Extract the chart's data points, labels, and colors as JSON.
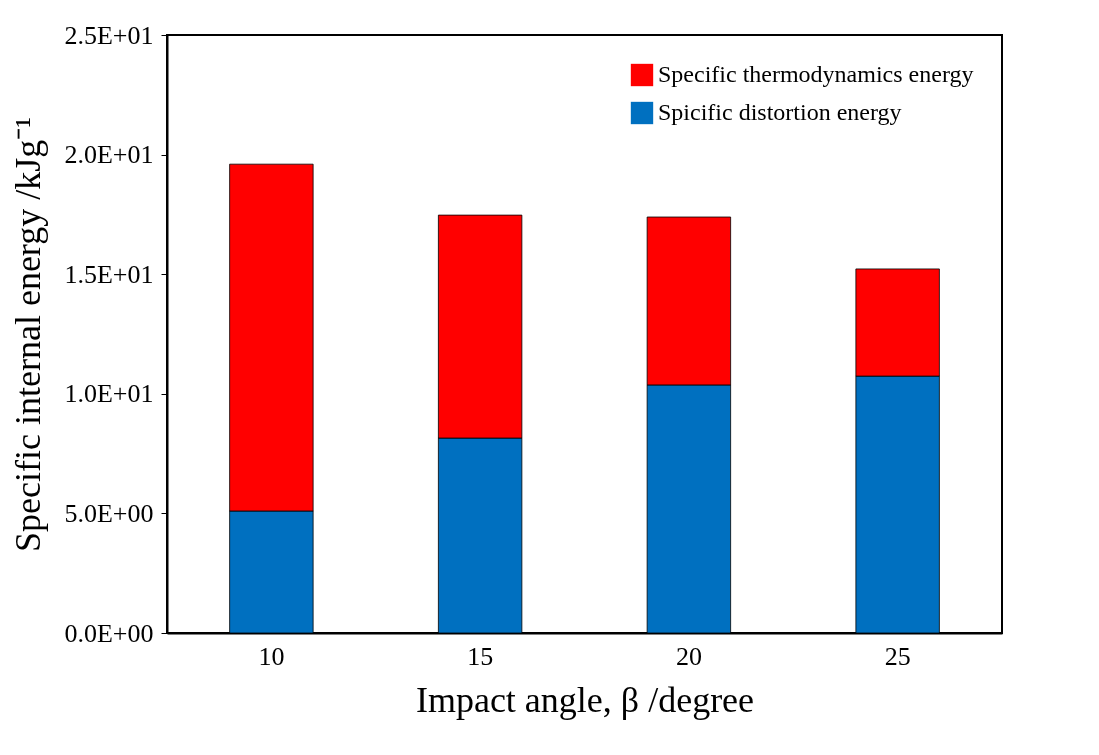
{
  "chart_data": {
    "type": "bar",
    "stacked": true,
    "xlabel": "Impact angle, β /degree",
    "ylabel": "Specific internal energy /kJg⁻¹",
    "categories": [
      "10",
      "15",
      "20",
      "25"
    ],
    "series": [
      {
        "name": "Spicific distortion energy",
        "color": "#0070c0",
        "values": [
          5.1,
          8.15,
          10.37,
          10.74
        ]
      },
      {
        "name": "Specific thermodynamics energy",
        "color": "#ff0000",
        "values": [
          14.5,
          9.32,
          7.02,
          4.48
        ]
      }
    ],
    "ylim": [
      0,
      25
    ],
    "yticks": [
      {
        "value": 0,
        "label": "0.0E+00"
      },
      {
        "value": 5,
        "label": "5.0E+00"
      },
      {
        "value": 10,
        "label": "1.0E+01"
      },
      {
        "value": 15,
        "label": "1.5E+01"
      },
      {
        "value": 20,
        "label": "2.0E+01"
      },
      {
        "value": 25,
        "label": "2.5E+01"
      }
    ],
    "grid": false,
    "legend": "top right"
  }
}
